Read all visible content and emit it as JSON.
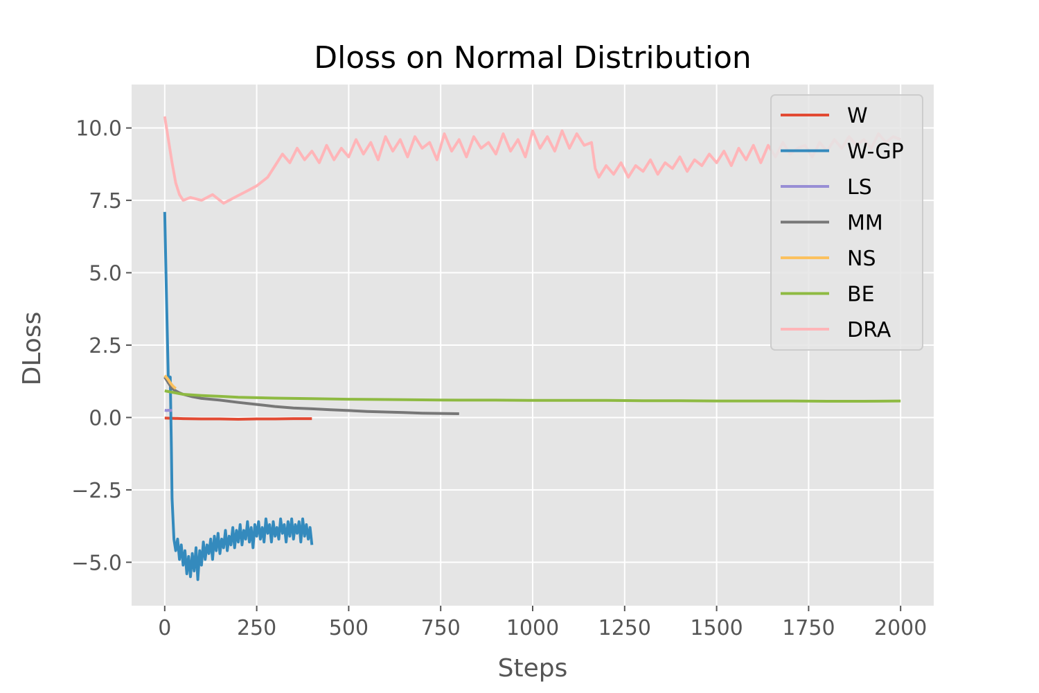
{
  "chart_data": {
    "type": "line",
    "title": "Dloss on Normal Distribution",
    "xlabel": "Steps",
    "ylabel": "DLoss",
    "xlim": [
      -90,
      2090
    ],
    "ylim": [
      -6.5,
      11.5
    ],
    "xticks": [
      0,
      250,
      500,
      750,
      1000,
      1250,
      1500,
      1750,
      2000
    ],
    "yticks": [
      -5.0,
      -2.5,
      0.0,
      2.5,
      5.0,
      7.5,
      10.0
    ],
    "ytick_labels": [
      "−5.0",
      "−2.5",
      "0.0",
      "2.5",
      "5.0",
      "7.5",
      "10.0"
    ],
    "grid": true,
    "legend": "top-right",
    "series": [
      {
        "name": "W",
        "color": "#e24a33",
        "x": [
          0,
          25,
          50,
          100,
          150,
          200,
          250,
          300,
          350,
          400
        ],
        "y": [
          -0.02,
          -0.03,
          -0.04,
          -0.05,
          -0.05,
          -0.06,
          -0.05,
          -0.05,
          -0.04,
          -0.04
        ]
      },
      {
        "name": "W-GP",
        "color": "#348abd",
        "x": [
          0,
          5,
          10,
          15,
          18,
          20,
          25,
          30,
          35,
          40,
          45,
          50,
          55,
          60,
          65,
          70,
          75,
          80,
          85,
          90,
          95,
          100,
          105,
          110,
          115,
          120,
          125,
          130,
          135,
          140,
          145,
          150,
          155,
          160,
          165,
          170,
          175,
          180,
          185,
          190,
          195,
          200,
          205,
          210,
          215,
          220,
          225,
          230,
          235,
          240,
          245,
          250,
          255,
          260,
          265,
          270,
          275,
          280,
          285,
          290,
          295,
          300,
          305,
          310,
          315,
          320,
          325,
          330,
          335,
          340,
          345,
          350,
          355,
          360,
          365,
          370,
          375,
          380,
          385,
          390,
          395,
          400
        ],
        "y": [
          7.1,
          4.0,
          1.2,
          1.4,
          -1.0,
          -2.8,
          -4.2,
          -4.6,
          -4.2,
          -4.9,
          -4.4,
          -5.1,
          -4.6,
          -5.4,
          -4.8,
          -5.5,
          -4.7,
          -5.3,
          -4.5,
          -5.6,
          -4.6,
          -5.1,
          -4.3,
          -4.9,
          -4.4,
          -4.7,
          -4.2,
          -4.9,
          -4.1,
          -4.6,
          -4.0,
          -4.7,
          -4.2,
          -4.5,
          -3.9,
          -4.6,
          -4.1,
          -4.4,
          -3.8,
          -4.5,
          -3.9,
          -4.3,
          -3.7,
          -4.4,
          -3.9,
          -4.2,
          -3.6,
          -4.3,
          -3.8,
          -4.5,
          -3.7,
          -4.1,
          -3.6,
          -4.2,
          -3.8,
          -4.3,
          -3.5,
          -4.0,
          -3.7,
          -4.3,
          -3.6,
          -4.1,
          -3.8,
          -4.2,
          -3.5,
          -4.0,
          -3.7,
          -4.3,
          -3.6,
          -4.1,
          -3.5,
          -4.2,
          -3.7,
          -4.0,
          -3.6,
          -4.3,
          -3.5,
          -4.1,
          -3.7,
          -4.2,
          -3.8,
          -4.4
        ]
      },
      {
        "name": "LS",
        "color": "#988ed5",
        "x": [
          0,
          5,
          10,
          15,
          20
        ],
        "y": [
          0.25,
          0.24,
          0.25,
          0.24,
          0.25
        ]
      },
      {
        "name": "MM",
        "color": "#777777",
        "x": [
          0,
          10,
          20,
          30,
          40,
          50,
          75,
          100,
          150,
          200,
          250,
          300,
          350,
          400,
          450,
          500,
          550,
          600,
          650,
          700,
          750,
          800
        ],
        "y": [
          1.4,
          1.2,
          1.0,
          0.92,
          0.85,
          0.8,
          0.72,
          0.66,
          0.6,
          0.52,
          0.45,
          0.38,
          0.33,
          0.3,
          0.27,
          0.24,
          0.21,
          0.19,
          0.17,
          0.15,
          0.14,
          0.13
        ]
      },
      {
        "name": "NS",
        "color": "#fbc15e",
        "x": [
          0,
          5,
          10,
          15,
          20,
          25,
          30
        ],
        "y": [
          1.45,
          1.38,
          1.3,
          1.2,
          1.12,
          1.05,
          1.0
        ]
      },
      {
        "name": "BE",
        "color": "#8eba42",
        "x": [
          0,
          25,
          50,
          100,
          150,
          200,
          300,
          400,
          500,
          600,
          700,
          800,
          900,
          1000,
          1100,
          1200,
          1300,
          1400,
          1500,
          1600,
          1700,
          1800,
          1900,
          2000
        ],
        "y": [
          0.92,
          0.86,
          0.8,
          0.76,
          0.73,
          0.7,
          0.67,
          0.65,
          0.63,
          0.62,
          0.61,
          0.6,
          0.6,
          0.59,
          0.59,
          0.59,
          0.58,
          0.58,
          0.57,
          0.57,
          0.57,
          0.56,
          0.56,
          0.57
        ]
      },
      {
        "name": "DRA",
        "color": "#ffb5b8",
        "x": [
          0,
          10,
          20,
          30,
          40,
          50,
          70,
          100,
          130,
          160,
          190,
          220,
          250,
          280,
          300,
          320,
          340,
          360,
          380,
          400,
          420,
          440,
          460,
          480,
          500,
          520,
          540,
          560,
          580,
          600,
          620,
          640,
          660,
          680,
          700,
          720,
          740,
          760,
          780,
          800,
          820,
          840,
          860,
          880,
          900,
          920,
          940,
          960,
          980,
          1000,
          1020,
          1040,
          1060,
          1080,
          1100,
          1120,
          1140,
          1160,
          1170,
          1180,
          1200,
          1220,
          1240,
          1260,
          1280,
          1300,
          1320,
          1340,
          1360,
          1380,
          1400,
          1420,
          1440,
          1460,
          1480,
          1500,
          1520,
          1540,
          1560,
          1580,
          1600,
          1620,
          1640,
          1660,
          1680,
          1700,
          1720,
          1740,
          1760,
          1780,
          1800,
          1820,
          1840,
          1860,
          1880,
          1900,
          1920,
          1940,
          1960,
          1980,
          2000
        ],
        "y": [
          10.4,
          9.6,
          8.8,
          8.1,
          7.7,
          7.5,
          7.6,
          7.5,
          7.7,
          7.4,
          7.6,
          7.8,
          8.0,
          8.3,
          8.7,
          9.1,
          8.8,
          9.3,
          8.9,
          9.2,
          8.8,
          9.4,
          8.9,
          9.3,
          9.0,
          9.6,
          9.1,
          9.5,
          8.9,
          9.7,
          9.2,
          9.6,
          9.0,
          9.7,
          9.3,
          9.5,
          8.9,
          9.8,
          9.2,
          9.6,
          9.0,
          9.7,
          9.3,
          9.5,
          9.1,
          9.8,
          9.2,
          9.6,
          9.0,
          9.9,
          9.3,
          9.7,
          9.2,
          9.9,
          9.3,
          9.8,
          9.4,
          9.5,
          8.6,
          8.3,
          8.7,
          8.4,
          8.8,
          8.3,
          8.7,
          8.5,
          8.9,
          8.4,
          8.8,
          8.6,
          9.0,
          8.5,
          8.9,
          8.7,
          9.1,
          8.8,
          9.2,
          8.7,
          9.3,
          8.9,
          9.4,
          8.8,
          9.4,
          9.0,
          9.5,
          9.1,
          9.3,
          9.4,
          9.0,
          9.5,
          9.2,
          9.6,
          9.3,
          9.7,
          9.4,
          9.6,
          9.3,
          9.8,
          9.5,
          9.7,
          9.6
        ]
      }
    ]
  }
}
